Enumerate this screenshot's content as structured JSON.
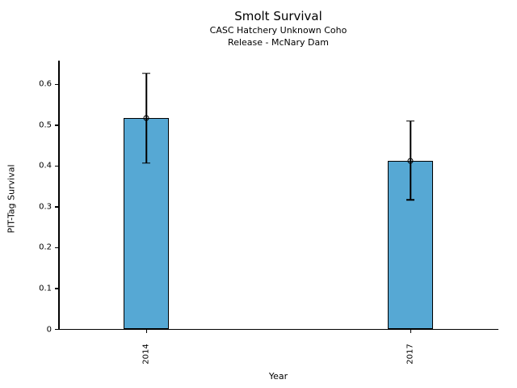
{
  "chart_data": {
    "type": "bar",
    "title": "Smolt Survival",
    "subtitle_lines": [
      "CASC Hatchery Unknown Coho",
      "Release - McNary Dam"
    ],
    "xlabel": "Year",
    "ylabel": "PIT-Tag Survival",
    "categories": [
      "2014",
      "2017"
    ],
    "values": [
      0.517,
      0.412
    ],
    "error_low": [
      0.406,
      0.316
    ],
    "error_high": [
      0.626,
      0.509
    ],
    "yticks": [
      0,
      0.1,
      0.2,
      0.3,
      0.4,
      0.5,
      0.6
    ],
    "ytick_labels": [
      "0",
      "0.1",
      "0.2",
      "0.3",
      "0.4",
      "0.5",
      "0.6"
    ],
    "ylim": [
      0,
      0.657
    ],
    "grid": false,
    "legend": null,
    "marker": "open-circle",
    "bar_color": "#56A8D4",
    "bar_edge_color": "#000000",
    "error_color": "#000000"
  }
}
